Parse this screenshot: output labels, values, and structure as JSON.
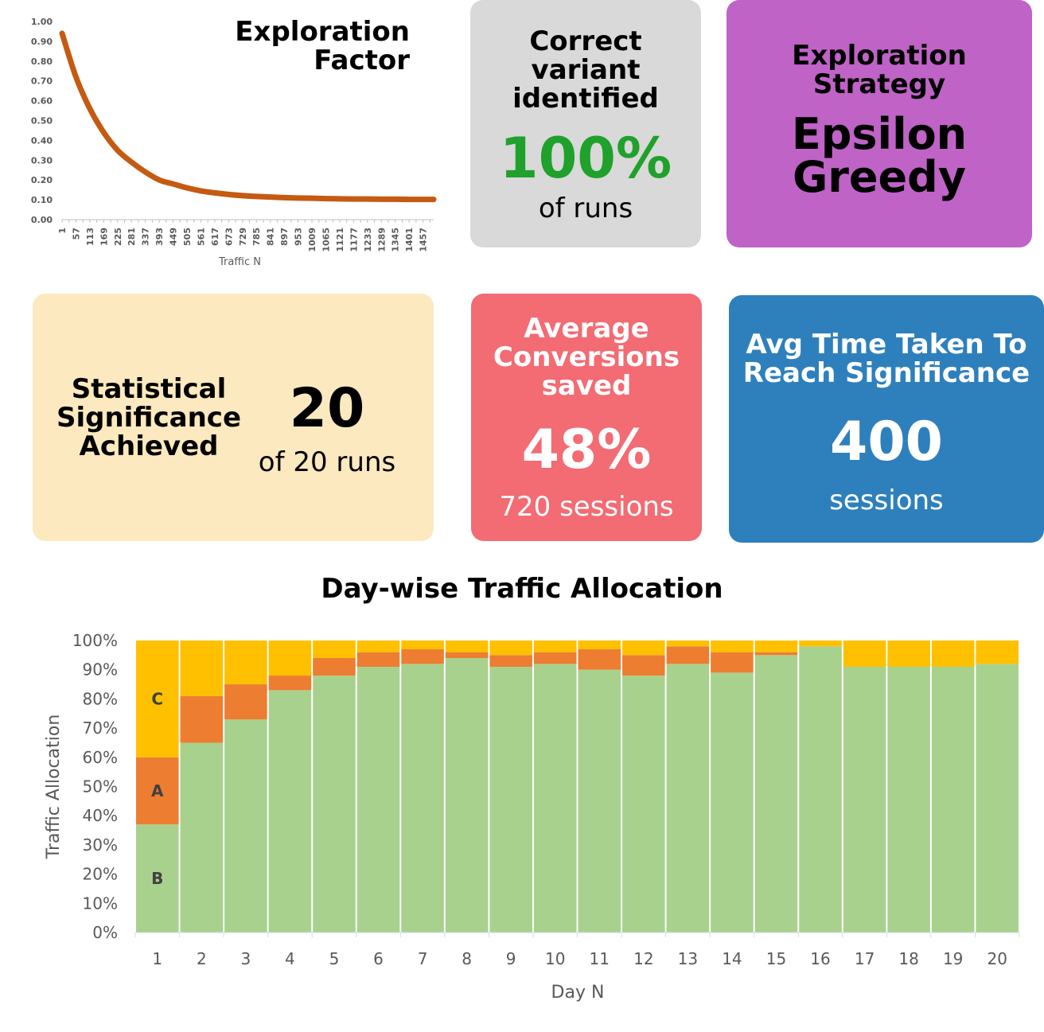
{
  "exploration_factor": {
    "title_line1": "Exploration",
    "title_line2": "Factor"
  },
  "cards": {
    "correct_variant": {
      "head_line1": "Correct",
      "head_line2": "variant",
      "head_line3": "identified",
      "value": "100%",
      "sub": "of runs",
      "bg": "#d9d9d9",
      "value_color": "#1fa12b"
    },
    "strategy": {
      "head_line1": "Exploration",
      "head_line2": "Strategy",
      "value_line1": "Epsilon",
      "value_line2": "Greedy",
      "bg": "#bf63c6"
    },
    "statistical": {
      "head_line1": "Statistical",
      "head_line2": "Significance",
      "head_line3": "Achieved",
      "value": "20",
      "sub": "of 20 runs",
      "bg": "#fde9bf"
    },
    "avg_conversions": {
      "head_line1": "Average",
      "head_line2": "Conversions",
      "head_line3": "saved",
      "value": "48%",
      "sub": "720 sessions",
      "bg": "#f36b73"
    },
    "avg_time": {
      "head_line1": "Avg Time Taken To",
      "head_line2": "Reach Significance",
      "value": "400",
      "sub": "sessions",
      "bg": "#2e80bd"
    }
  },
  "traffic_allocation": {
    "title": "Day-wise Traffic Allocation"
  },
  "chart_data": [
    {
      "type": "line",
      "title": "Exploration Factor",
      "xlabel": "Traffic N",
      "ylabel": "",
      "x_ticks": [
        1,
        57,
        113,
        169,
        225,
        281,
        337,
        393,
        449,
        505,
        561,
        617,
        673,
        729,
        785,
        841,
        897,
        953,
        1009,
        1065,
        1121,
        1177,
        1233,
        1289,
        1345,
        1401,
        1457
      ],
      "y_ticks": [
        "0.00",
        "0.10",
        "0.20",
        "0.30",
        "0.40",
        "0.50",
        "0.60",
        "0.70",
        "0.80",
        "0.90",
        "1.00"
      ],
      "xlim": [
        1,
        1500
      ],
      "ylim": [
        0,
        1
      ],
      "series": [
        {
          "color": "#c55a11",
          "x": [
            1,
            57,
            113,
            169,
            225,
            281,
            337,
            393,
            449,
            505,
            561,
            617,
            673,
            729,
            785,
            841,
            897,
            953,
            1009,
            1065,
            1121,
            1177,
            1233,
            1289,
            1345,
            1401,
            1457,
            1500
          ],
          "values": [
            0.94,
            0.72,
            0.56,
            0.44,
            0.35,
            0.29,
            0.24,
            0.2,
            0.18,
            0.16,
            0.145,
            0.135,
            0.127,
            0.121,
            0.117,
            0.114,
            0.111,
            0.109,
            0.108,
            0.106,
            0.105,
            0.104,
            0.104,
            0.103,
            0.103,
            0.102,
            0.102,
            0.102
          ]
        }
      ]
    },
    {
      "type": "bar",
      "stacked": true,
      "title": "Day-wise Traffic Allocation",
      "xlabel": "Day N",
      "ylabel": "Traffic Allocation",
      "ylim": [
        0,
        100
      ],
      "y_ticks": [
        "0%",
        "10%",
        "20%",
        "30%",
        "40%",
        "50%",
        "60%",
        "70%",
        "80%",
        "90%",
        "100%"
      ],
      "categories": [
        "1",
        "2",
        "3",
        "4",
        "5",
        "6",
        "7",
        "8",
        "9",
        "10",
        "11",
        "12",
        "13",
        "14",
        "15",
        "16",
        "17",
        "18",
        "19",
        "20"
      ],
      "series": [
        {
          "name": "B",
          "color": "#a9d18e",
          "values": [
            37,
            65,
            73,
            83,
            88,
            91,
            92,
            94,
            91,
            92,
            90,
            88,
            92,
            89,
            95,
            98,
            91,
            91,
            91,
            92
          ]
        },
        {
          "name": "A",
          "color": "#ed7d31",
          "values": [
            23,
            16,
            12,
            5,
            6,
            5,
            5,
            2,
            4,
            4,
            7,
            7,
            6,
            7,
            1,
            0,
            0,
            0,
            0,
            0
          ]
        },
        {
          "name": "C",
          "color": "#ffc000",
          "values": [
            40,
            19,
            15,
            12,
            6,
            4,
            3,
            4,
            5,
            4,
            3,
            5,
            2,
            4,
            4,
            2,
            9,
            9,
            9,
            8
          ]
        }
      ]
    }
  ]
}
